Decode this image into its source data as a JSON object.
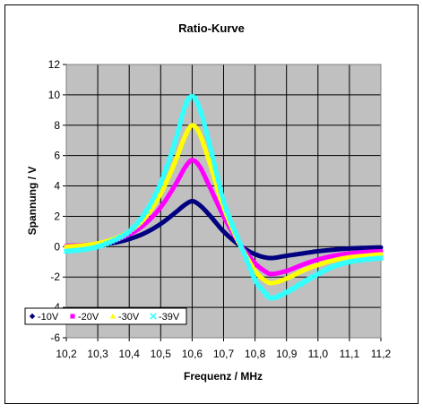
{
  "chart_data": {
    "type": "line",
    "title": "Ratio-Kurve",
    "xlabel": "Frequenz / MHz",
    "ylabel": "Spannung / V",
    "xlim": [
      10.2,
      11.2
    ],
    "ylim": [
      -6,
      12
    ],
    "x_ticks": [
      10.2,
      10.3,
      10.4,
      10.5,
      10.6,
      10.7,
      10.8,
      10.9,
      11.0,
      11.1,
      11.2
    ],
    "x_tick_labels": [
      "10,2",
      "10,3",
      "10,4",
      "10,5",
      "10,6",
      "10,7",
      "10,8",
      "10,9",
      "11,0",
      "11,1",
      "11,2"
    ],
    "y_ticks": [
      -6,
      -4,
      -2,
      0,
      2,
      4,
      6,
      8,
      10,
      12
    ],
    "y_tick_labels": [
      "-6",
      "-4",
      "-2",
      "0",
      "2",
      "4",
      "6",
      "8",
      "10",
      "12"
    ],
    "grid": true,
    "plot_background": "#c0c0c0",
    "legend_position": "lower-left",
    "x": [
      10.2,
      10.25,
      10.3,
      10.35,
      10.4,
      10.45,
      10.5,
      10.55,
      10.58,
      10.6,
      10.62,
      10.65,
      10.7,
      10.75,
      10.78,
      10.8,
      10.83,
      10.85,
      10.9,
      10.95,
      11.0,
      11.05,
      11.1,
      11.15,
      11.2
    ],
    "series": [
      {
        "name": "-10V",
        "color": "#000080",
        "marker": "diamond",
        "values": [
          0.05,
          0.08,
          0.12,
          0.25,
          0.5,
          0.9,
          1.5,
          2.3,
          2.8,
          3.0,
          2.8,
          2.2,
          1.0,
          0.1,
          -0.3,
          -0.5,
          -0.7,
          -0.75,
          -0.6,
          -0.45,
          -0.3,
          -0.2,
          -0.12,
          -0.08,
          -0.05
        ]
      },
      {
        "name": "-20V",
        "color": "#ff00ff",
        "marker": "square",
        "values": [
          0.05,
          0.1,
          0.2,
          0.4,
          0.8,
          1.5,
          2.6,
          4.2,
          5.3,
          5.7,
          5.4,
          4.2,
          2.0,
          0.2,
          -0.6,
          -1.1,
          -1.6,
          -1.8,
          -1.6,
          -1.2,
          -0.85,
          -0.6,
          -0.45,
          -0.35,
          -0.3
        ]
      },
      {
        "name": "-30V",
        "color": "#ffff00",
        "marker": "triangle",
        "values": [
          0.0,
          0.08,
          0.22,
          0.5,
          1.0,
          1.9,
          3.5,
          5.8,
          7.4,
          8.0,
          7.6,
          5.9,
          2.6,
          0.2,
          -0.9,
          -1.6,
          -2.2,
          -2.4,
          -2.1,
          -1.6,
          -1.2,
          -0.9,
          -0.7,
          -0.6,
          -0.5
        ]
      },
      {
        "name": "-39V",
        "color": "#33ffff",
        "marker": "cross",
        "values": [
          -0.3,
          -0.2,
          0.0,
          0.4,
          1.0,
          2.2,
          4.2,
          7.2,
          9.4,
          9.9,
          9.3,
          7.2,
          3.0,
          0.3,
          -1.2,
          -2.2,
          -3.0,
          -3.4,
          -3.0,
          -2.4,
          -1.8,
          -1.3,
          -1.0,
          -0.85,
          -0.75
        ]
      }
    ]
  }
}
